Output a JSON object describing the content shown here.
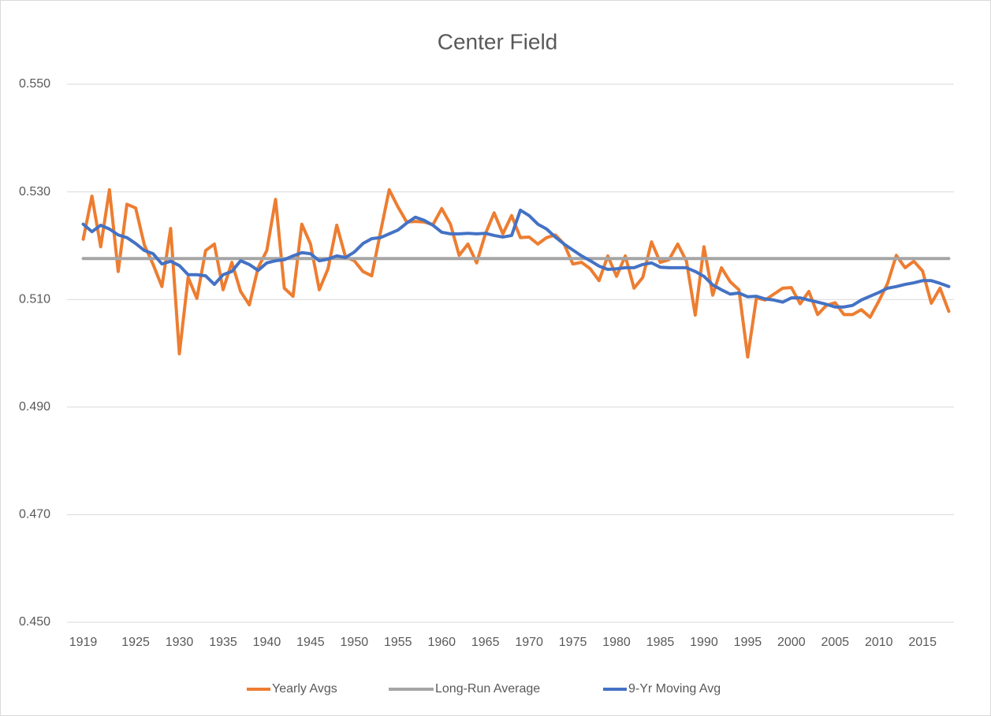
{
  "chart_data": {
    "type": "line",
    "title": "Center Field",
    "categories": [
      "1919",
      null,
      null,
      null,
      null,
      null,
      "1925",
      null,
      null,
      null,
      null,
      "1930",
      null,
      null,
      null,
      null,
      "1935",
      null,
      null,
      null,
      null,
      "1940",
      null,
      null,
      null,
      null,
      "1945",
      null,
      null,
      null,
      null,
      "1950",
      null,
      null,
      null,
      null,
      "1955",
      null,
      null,
      null,
      null,
      "1960",
      null,
      null,
      null,
      null,
      "1965",
      null,
      null,
      null,
      null,
      "1970",
      null,
      null,
      null,
      null,
      "1975",
      null,
      null,
      null,
      null,
      "1980",
      null,
      null,
      null,
      null,
      "1985",
      null,
      null,
      null,
      null,
      "1990",
      null,
      null,
      null,
      null,
      "1995",
      null,
      null,
      null,
      null,
      "2000",
      null,
      null,
      null,
      null,
      "2005",
      null,
      null,
      null,
      null,
      "2010",
      null,
      null,
      null,
      null,
      "2015",
      null,
      null,
      null
    ],
    "series": [
      {
        "name": "Yearly Avgs",
        "color": "#ed7d31",
        "values": [
          0.5212,
          0.5292,
          0.5198,
          0.5304,
          0.5152,
          0.5277,
          0.527,
          0.5201,
          0.5165,
          0.5124,
          0.5232,
          0.4999,
          0.5141,
          0.5102,
          0.5191,
          0.5203,
          0.5118,
          0.5169,
          0.5115,
          0.509,
          0.5159,
          0.5191,
          0.5286,
          0.5121,
          0.5106,
          0.524,
          0.5203,
          0.5118,
          0.5157,
          0.5238,
          0.5179,
          0.5172,
          0.5152,
          0.5144,
          0.5225,
          0.5304,
          0.5272,
          0.5244,
          0.5245,
          0.5244,
          0.5239,
          0.5269,
          0.524,
          0.5182,
          0.5203,
          0.5168,
          0.5222,
          0.5261,
          0.5222,
          0.5256,
          0.5215,
          0.5216,
          0.5203,
          0.5215,
          0.522,
          0.5203,
          0.5166,
          0.5169,
          0.5157,
          0.5135,
          0.5181,
          0.5143,
          0.5181,
          0.5121,
          0.5141,
          0.5207,
          0.5169,
          0.5174,
          0.5203,
          0.5171,
          0.5071,
          0.5198,
          0.5108,
          0.5159,
          0.5133,
          0.5118,
          0.4993,
          0.5103,
          0.5099,
          0.511,
          0.5121,
          0.5122,
          0.5092,
          0.5115,
          0.5072,
          0.5089,
          0.5094,
          0.5072,
          0.5072,
          0.5081,
          0.5067,
          0.5097,
          0.513,
          0.5182,
          0.5159,
          0.5171,
          0.5153,
          0.5093,
          0.5121,
          0.5078
        ]
      },
      {
        "name": "Long-Run Average",
        "color": "#a5a5a5",
        "values": [
          0.5176,
          0.5176,
          0.5176,
          0.5176,
          0.5176,
          0.5176,
          0.5176,
          0.5176,
          0.5176,
          0.5176,
          0.5176,
          0.5176,
          0.5176,
          0.5176,
          0.5176,
          0.5176,
          0.5176,
          0.5176,
          0.5176,
          0.5176,
          0.5176,
          0.5176,
          0.5176,
          0.5176,
          0.5176,
          0.5176,
          0.5176,
          0.5176,
          0.5176,
          0.5176,
          0.5176,
          0.5176,
          0.5176,
          0.5176,
          0.5176,
          0.5176,
          0.5176,
          0.5176,
          0.5176,
          0.5176,
          0.5176,
          0.5176,
          0.5176,
          0.5176,
          0.5176,
          0.5176,
          0.5176,
          0.5176,
          0.5176,
          0.5176,
          0.5176,
          0.5176,
          0.5176,
          0.5176,
          0.5176,
          0.5176,
          0.5176,
          0.5176,
          0.5176,
          0.5176,
          0.5176,
          0.5176,
          0.5176,
          0.5176,
          0.5176,
          0.5176,
          0.5176,
          0.5176,
          0.5176,
          0.5176,
          0.5176,
          0.5176,
          0.5176,
          0.5176,
          0.5176,
          0.5176,
          0.5176,
          0.5176,
          0.5176,
          0.5176,
          0.5176,
          0.5176,
          0.5176,
          0.5176,
          0.5176,
          0.5176,
          0.5176,
          0.5176,
          0.5176,
          0.5176,
          0.5176,
          0.5176,
          0.5176,
          0.5176,
          0.5176,
          0.5176,
          0.5176,
          0.5176,
          0.5176,
          0.5176
        ]
      },
      {
        "name": "9-Yr Moving Avg",
        "color": "#4472c4",
        "values": [
          0.524,
          0.5226,
          0.5238,
          0.5231,
          0.522,
          0.5215,
          0.5204,
          0.5191,
          0.5185,
          0.5166,
          0.5171,
          0.5163,
          0.5146,
          0.5146,
          0.5144,
          0.5128,
          0.5146,
          0.5152,
          0.5172,
          0.5165,
          0.5154,
          0.5168,
          0.5172,
          0.5174,
          0.5181,
          0.5187,
          0.5185,
          0.5172,
          0.5175,
          0.5181,
          0.5178,
          0.5188,
          0.5204,
          0.5213,
          0.5215,
          0.5222,
          0.5229,
          0.5242,
          0.5253,
          0.5247,
          0.5238,
          0.5225,
          0.5222,
          0.5222,
          0.5223,
          0.5222,
          0.5223,
          0.5219,
          0.5216,
          0.5219,
          0.5266,
          0.5256,
          0.524,
          0.5231,
          0.5216,
          0.5203,
          0.5192,
          0.5181,
          0.5172,
          0.5162,
          0.5156,
          0.5157,
          0.5159,
          0.5159,
          0.5165,
          0.5168,
          0.516,
          0.5159,
          0.5159,
          0.5159,
          0.5152,
          0.5143,
          0.5127,
          0.5118,
          0.511,
          0.5112,
          0.5105,
          0.5106,
          0.5101,
          0.5099,
          0.5095,
          0.5103,
          0.5103,
          0.5099,
          0.5095,
          0.5091,
          0.5086,
          0.5086,
          0.5089,
          0.5099,
          0.5106,
          0.5113,
          0.5121,
          0.5124,
          0.5128,
          0.5131,
          0.5135,
          0.5135,
          0.513,
          0.5124
        ]
      }
    ],
    "ylim": [
      0.45,
      0.55
    ],
    "yticks": [
      {
        "value": 0.45,
        "label": "0.450"
      },
      {
        "value": 0.47,
        "label": "0.470"
      },
      {
        "value": 0.49,
        "label": "0.490"
      },
      {
        "value": 0.51,
        "label": "0.510"
      },
      {
        "value": 0.53,
        "label": "0.530"
      },
      {
        "value": 0.55,
        "label": "0.550"
      }
    ],
    "grid": true,
    "legend": "bottom"
  }
}
